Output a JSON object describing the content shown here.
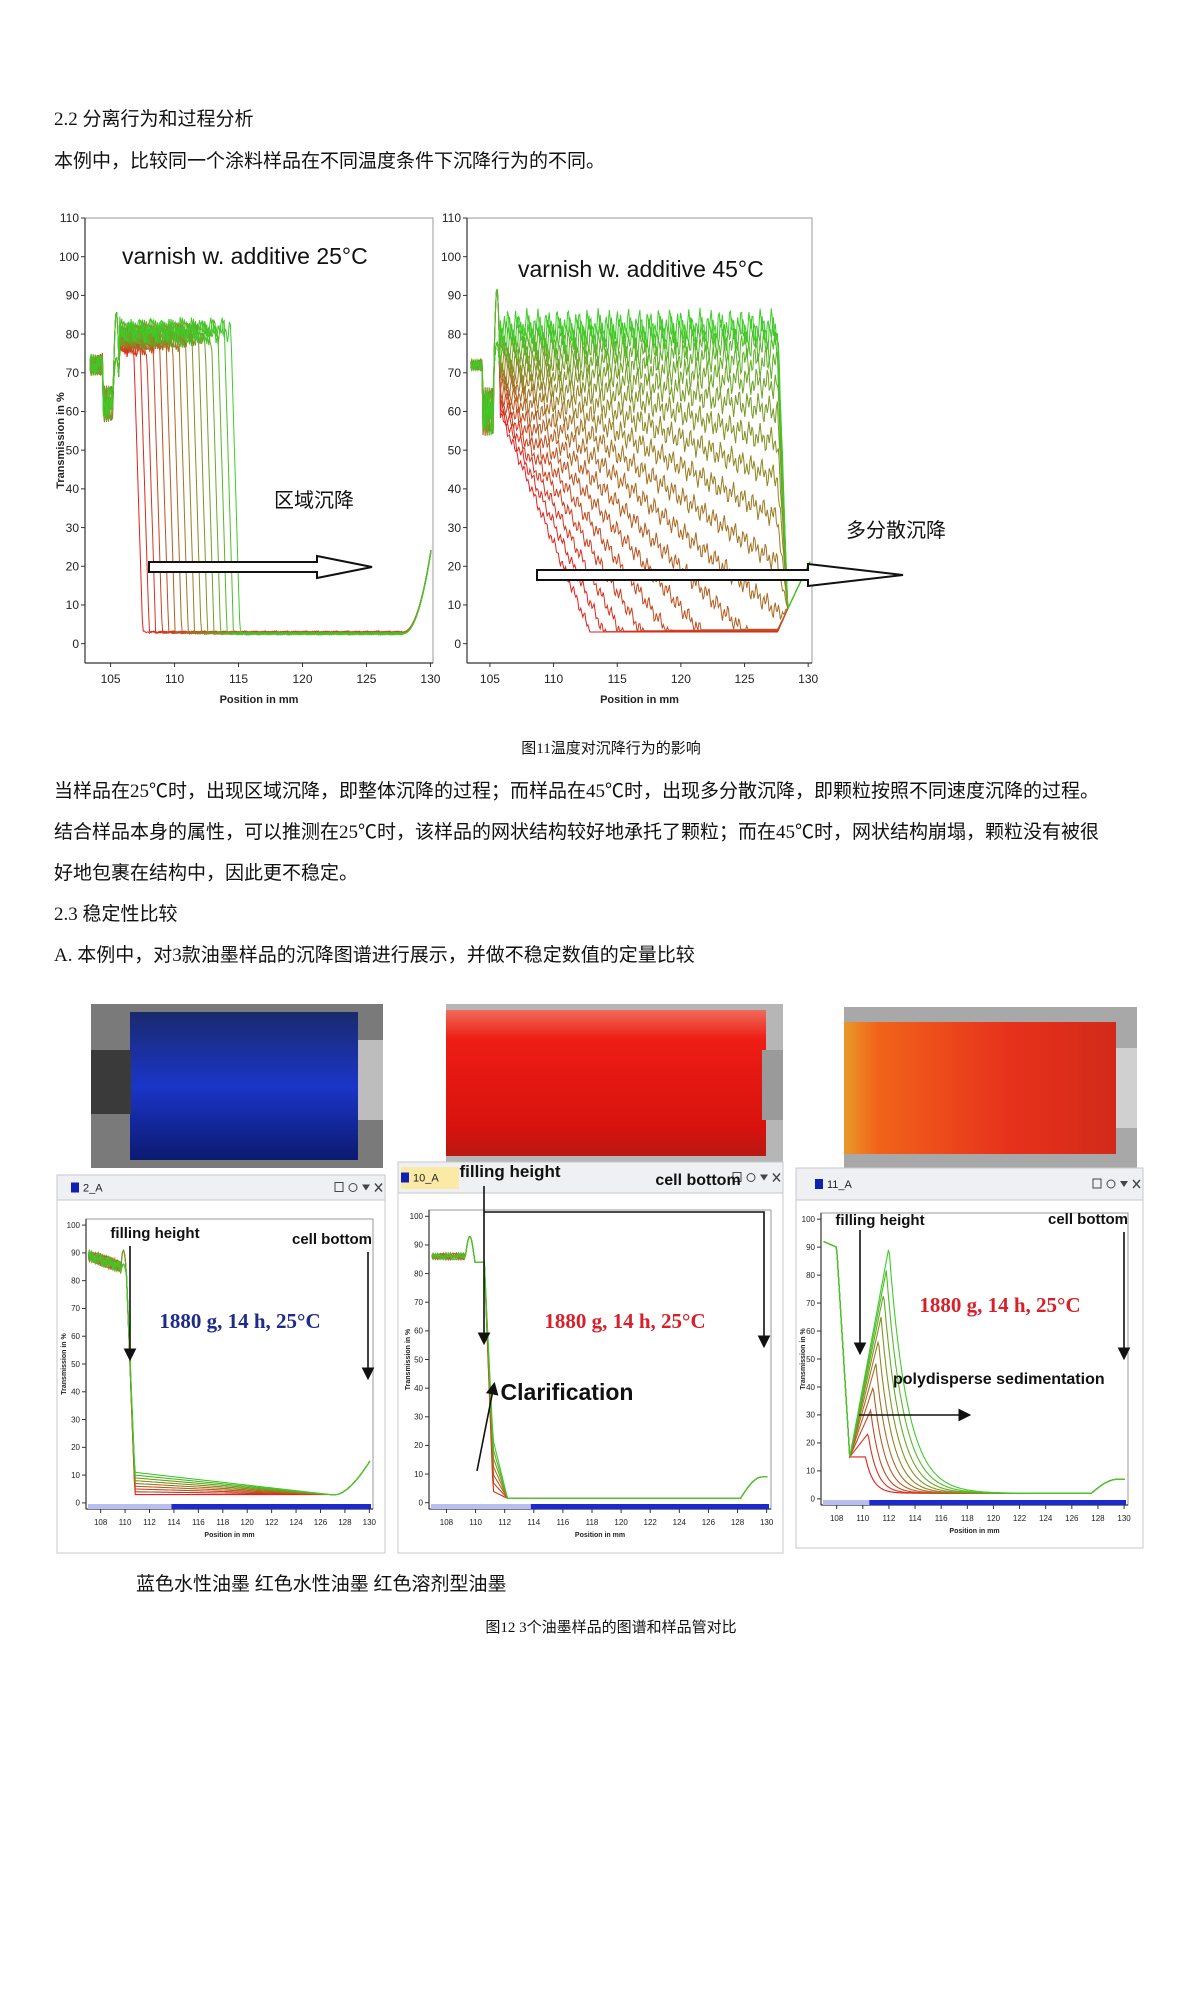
{
  "section_2_2": {
    "heading": "2.2 分离行为和过程分析",
    "text": "本例中，比较同一个涂料样品在不同温度条件下沉降行为的不同。"
  },
  "figure_11": {
    "charts": [
      {
        "title": "varnish w. additive 25°C",
        "annotation": "区域沉降",
        "x_label": "Position in mm",
        "y_label": "Transmission in %",
        "xlim": [
          103,
          130.2
        ],
        "ylim": [
          -5,
          110
        ],
        "xticks": [
          105,
          110,
          115,
          120,
          125,
          130
        ],
        "yticks": [
          0,
          10,
          20,
          30,
          40,
          50,
          60,
          70,
          80,
          90,
          100,
          110
        ]
      },
      {
        "title": "varnish w. additive 45°C",
        "x_label": "Position in mm",
        "xlim": [
          103.2,
          130.3
        ],
        "ylim": [
          -5,
          110
        ],
        "xticks": [
          105,
          110,
          115,
          120,
          125,
          130
        ],
        "yticks": [
          0,
          10,
          20,
          30,
          40,
          50,
          60,
          70,
          80,
          90,
          100,
          110
        ]
      }
    ],
    "annotation": "多分散沉降",
    "caption": "图11温度对沉降行为的影响"
  },
  "paragraph": [
    "当样品在25℃时，出现区域沉降，即整体沉降的过程；而样品在45℃时，出现多分散沉降，即颗粒按照不同速度沉降的过程。",
    "结合样品本身的属性，可以推测在25℃时，该样品的网状结构较好地承托了颗粒；而在45℃时，网状结构崩塌，颗粒没有被很",
    "好地包裹在结构中，因此更不稳定。"
  ],
  "section_2_3": {
    "heading": "2.3 稳定性比较",
    "text": "A. 本例中，对3款油墨样品的沉降图谱进行展示，并做不稳定数值的定量比较"
  },
  "figure_12": {
    "panels": [
      {
        "tab": "2_A",
        "filling_height": "filling height",
        "cell_bottom": "cell bottom",
        "condition": "1880 g, 14 h, 25°C",
        "x_label": "Position in mm",
        "y_label": "Transmission in %",
        "xlim": [
          106.8,
          130.3
        ],
        "ylim": [
          -2.2,
          102.2
        ],
        "xticks": [
          108,
          110,
          112,
          114,
          116,
          118,
          120,
          122,
          124,
          126,
          128,
          130
        ],
        "yticks": [
          0,
          10,
          20,
          30,
          40,
          50,
          60,
          70,
          80,
          90,
          100
        ]
      },
      {
        "tab": "10_A",
        "filling_height": "filling height",
        "cell_bottom": "cell bottom",
        "condition": "1880 g, 14 h, 25°C",
        "annotation": "Clarification",
        "x_label": "Position in mm",
        "y_label": "Transmission in %",
        "xlim": [
          106.8,
          130.3
        ],
        "ylim": [
          -2.2,
          102.2
        ],
        "xticks": [
          108,
          110,
          112,
          114,
          116,
          118,
          120,
          122,
          124,
          126,
          128,
          130
        ],
        "yticks": [
          0,
          10,
          20,
          30,
          40,
          50,
          60,
          70,
          80,
          90,
          100
        ]
      },
      {
        "tab": "11_A",
        "filling_height": "filling height",
        "cell_bottom": "cell bottom",
        "condition": "1880 g, 14 h, 25°C",
        "annotation": "polydisperse sedimentation",
        "x_label": "Position in mm",
        "y_label": "Transmission in %",
        "xlim": [
          106.8,
          130.3
        ],
        "ylim": [
          -2.2,
          102.2
        ],
        "xticks": [
          108,
          110,
          112,
          114,
          116,
          118,
          120,
          122,
          124,
          126,
          128,
          130
        ],
        "yticks": [
          0,
          10,
          20,
          30,
          40,
          50,
          60,
          70,
          80,
          90,
          100
        ]
      }
    ],
    "sample_labels": "蓝色水性油墨 红色水性油墨 红色溶剂型油墨",
    "caption": "图12 3个油墨样品的图谱和样品管对比"
  }
}
